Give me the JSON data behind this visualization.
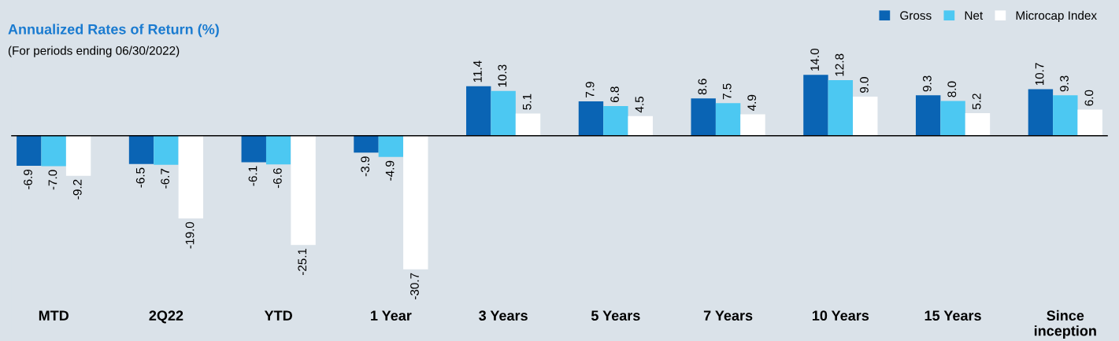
{
  "chart_data": {
    "type": "bar",
    "title": "Annualized Rates of Return (%)",
    "subtitle": "(For periods ending 06/30/2022)",
    "categories": [
      "MTD",
      "2Q22",
      "YTD",
      "1 Year",
      "3 Years",
      "5 Years",
      "7 Years",
      "10 Years",
      "15 Years",
      "Since\ninception"
    ],
    "series": [
      {
        "name": "Gross",
        "color": "#0a64b4",
        "values": [
          -6.9,
          -6.5,
          -6.1,
          -3.9,
          11.4,
          7.9,
          8.6,
          14.0,
          9.3,
          10.7
        ],
        "value_labels": [
          "-6.9",
          "-6.5",
          "-6.1",
          "-3.9",
          "11.4",
          "7.9",
          "8.6",
          "14.0",
          "9.3",
          "10.7"
        ]
      },
      {
        "name": "Net",
        "color": "#4cc8f2",
        "values": [
          -7.0,
          -6.7,
          -6.6,
          -4.9,
          10.3,
          6.8,
          7.5,
          12.8,
          8.0,
          9.3
        ],
        "value_labels": [
          "-7.0",
          "-6.7",
          "-6.6",
          "-4.9",
          "10.3",
          "6.8",
          "7.5",
          "12.8",
          "8.0",
          "9.3"
        ]
      },
      {
        "name": "Microcap Index",
        "color": "#ffffff",
        "values": [
          -9.2,
          -19.0,
          -25.1,
          -30.7,
          5.1,
          4.5,
          4.9,
          9.0,
          5.2,
          6.0
        ],
        "value_labels": [
          "-9.2",
          "-19.0",
          "-25.1",
          "-30.7",
          "5.1",
          "4.5",
          "4.9",
          "9.0",
          "5.2",
          "6.0"
        ]
      }
    ],
    "legend": "top right",
    "grid": false
  }
}
